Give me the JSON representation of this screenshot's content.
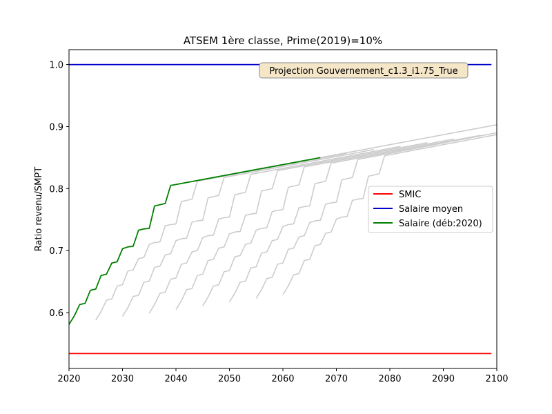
{
  "chart_data": {
    "type": "line",
    "title": "ATSEM 1ère classe, Prime(2019)=10%",
    "xlabel": "",
    "ylabel": "Ratio revenu/SMPT",
    "xlim": [
      2020,
      2100
    ],
    "ylim": [
      0.51,
      1.024
    ],
    "xticks": [
      2020,
      2030,
      2040,
      2050,
      2060,
      2070,
      2080,
      2090,
      2100
    ],
    "yticks": [
      0.6,
      0.7,
      0.8,
      0.9,
      1.0
    ],
    "x_tick_labels": [
      "2020",
      "2030",
      "2040",
      "2050",
      "2060",
      "2070",
      "2080",
      "2090",
      "2100"
    ],
    "y_tick_labels": [
      "0.6",
      "0.7",
      "0.8",
      "0.9",
      "1.0"
    ],
    "annotation": "Projection Gouvernement_c1.3_i1.75_True",
    "legend_position": "center-right",
    "grid": false,
    "series": [
      {
        "name": "SMIC",
        "color": "#ff0000",
        "x": [
          2020,
          2099
        ],
        "y": [
          0.534,
          0.534
        ]
      },
      {
        "name": "Salaire moyen",
        "color": "#0000cc",
        "x": [
          2020,
          2099
        ],
        "y": [
          1.0,
          1.0
        ]
      },
      {
        "name": "Salaire (déb:2020)",
        "color": "#008000",
        "x": [
          2020,
          2021,
          2022,
          2023,
          2024,
          2025,
          2026,
          2027,
          2028,
          2029,
          2030,
          2031,
          2032,
          2033,
          2034,
          2035,
          2036,
          2037,
          2038,
          2039,
          2067
        ],
        "y": [
          0.581,
          0.595,
          0.613,
          0.615,
          0.636,
          0.638,
          0.66,
          0.662,
          0.68,
          0.682,
          0.703,
          0.706,
          0.707,
          0.733,
          0.735,
          0.736,
          0.772,
          0.774,
          0.776,
          0.805,
          0.85
        ]
      },
      {
        "name": "",
        "color": "#cccccc",
        "x": [
          2025,
          2026,
          2027,
          2028,
          2029,
          2030,
          2031,
          2032,
          2033,
          2034,
          2035,
          2036,
          2037,
          2038,
          2039,
          2040,
          2041,
          2042,
          2043,
          2044,
          2072
        ],
        "y": [
          0.588,
          0.602,
          0.62,
          0.622,
          0.643,
          0.645,
          0.667,
          0.669,
          0.687,
          0.689,
          0.71,
          0.713,
          0.714,
          0.74,
          0.742,
          0.743,
          0.779,
          0.781,
          0.783,
          0.812,
          0.857
        ]
      },
      {
        "name": "",
        "color": "#cccccc",
        "x": [
          2030,
          2031,
          2032,
          2033,
          2034,
          2035,
          2036,
          2037,
          2038,
          2039,
          2040,
          2041,
          2042,
          2043,
          2044,
          2045,
          2046,
          2047,
          2048,
          2049,
          2077
        ],
        "y": [
          0.594,
          0.608,
          0.626,
          0.628,
          0.649,
          0.651,
          0.673,
          0.675,
          0.693,
          0.695,
          0.716,
          0.719,
          0.72,
          0.746,
          0.748,
          0.749,
          0.785,
          0.787,
          0.789,
          0.818,
          0.863
        ]
      },
      {
        "name": "",
        "color": "#cccccc",
        "x": [
          2035,
          2036,
          2037,
          2038,
          2039,
          2040,
          2041,
          2042,
          2043,
          2044,
          2045,
          2046,
          2047,
          2048,
          2049,
          2050,
          2051,
          2052,
          2053,
          2054,
          2082
        ],
        "y": [
          0.599,
          0.613,
          0.631,
          0.633,
          0.654,
          0.656,
          0.678,
          0.68,
          0.698,
          0.7,
          0.721,
          0.724,
          0.725,
          0.751,
          0.753,
          0.754,
          0.79,
          0.792,
          0.794,
          0.823,
          0.868
        ]
      },
      {
        "name": "",
        "color": "#cccccc",
        "x": [
          2040,
          2041,
          2042,
          2043,
          2044,
          2045,
          2046,
          2047,
          2048,
          2049,
          2050,
          2051,
          2052,
          2053,
          2054,
          2055,
          2056,
          2057,
          2058,
          2059,
          2087
        ],
        "y": [
          0.605,
          0.619,
          0.637,
          0.639,
          0.66,
          0.662,
          0.684,
          0.686,
          0.704,
          0.706,
          0.727,
          0.73,
          0.731,
          0.757,
          0.759,
          0.76,
          0.796,
          0.798,
          0.8,
          0.829,
          0.874
        ]
      },
      {
        "name": "",
        "color": "#cccccc",
        "x": [
          2045,
          2046,
          2047,
          2048,
          2049,
          2050,
          2051,
          2052,
          2053,
          2054,
          2055,
          2056,
          2057,
          2058,
          2059,
          2060,
          2061,
          2062,
          2063,
          2064,
          2092
        ],
        "y": [
          0.611,
          0.625,
          0.643,
          0.645,
          0.666,
          0.668,
          0.69,
          0.692,
          0.71,
          0.712,
          0.733,
          0.736,
          0.737,
          0.763,
          0.765,
          0.766,
          0.802,
          0.804,
          0.806,
          0.835,
          0.88
        ]
      },
      {
        "name": "",
        "color": "#cccccc",
        "x": [
          2050,
          2051,
          2052,
          2053,
          2054,
          2055,
          2056,
          2057,
          2058,
          2059,
          2060,
          2061,
          2062,
          2063,
          2064,
          2065,
          2066,
          2067,
          2068,
          2069,
          2097
        ],
        "y": [
          0.617,
          0.631,
          0.649,
          0.651,
          0.672,
          0.674,
          0.696,
          0.698,
          0.716,
          0.718,
          0.739,
          0.742,
          0.743,
          0.769,
          0.771,
          0.772,
          0.808,
          0.81,
          0.812,
          0.841,
          0.886
        ]
      },
      {
        "name": "",
        "color": "#cccccc",
        "x": [
          2055,
          2056,
          2057,
          2058,
          2059,
          2060,
          2061,
          2062,
          2063,
          2064,
          2065,
          2066,
          2067,
          2068,
          2069,
          2070,
          2071,
          2072,
          2073,
          2074,
          2100
        ],
        "y": [
          0.623,
          0.637,
          0.655,
          0.657,
          0.678,
          0.68,
          0.702,
          0.704,
          0.722,
          0.724,
          0.745,
          0.748,
          0.749,
          0.775,
          0.777,
          0.778,
          0.814,
          0.816,
          0.818,
          0.847,
          0.89
        ]
      },
      {
        "name": "",
        "color": "#cccccc",
        "x": [
          2060,
          2061,
          2062,
          2063,
          2064,
          2065,
          2066,
          2067,
          2068,
          2069,
          2070,
          2071,
          2072,
          2073,
          2074,
          2075,
          2076,
          2077,
          2078,
          2079,
          2100
        ],
        "y": [
          0.629,
          0.643,
          0.661,
          0.663,
          0.684,
          0.686,
          0.708,
          0.71,
          0.728,
          0.73,
          0.751,
          0.754,
          0.755,
          0.781,
          0.783,
          0.784,
          0.82,
          0.822,
          0.824,
          0.853,
          0.887
        ]
      },
      {
        "name": "",
        "color": "#cccccc",
        "x": [
          2067,
          2100
        ],
        "y": [
          0.85,
          0.903
        ]
      }
    ]
  }
}
